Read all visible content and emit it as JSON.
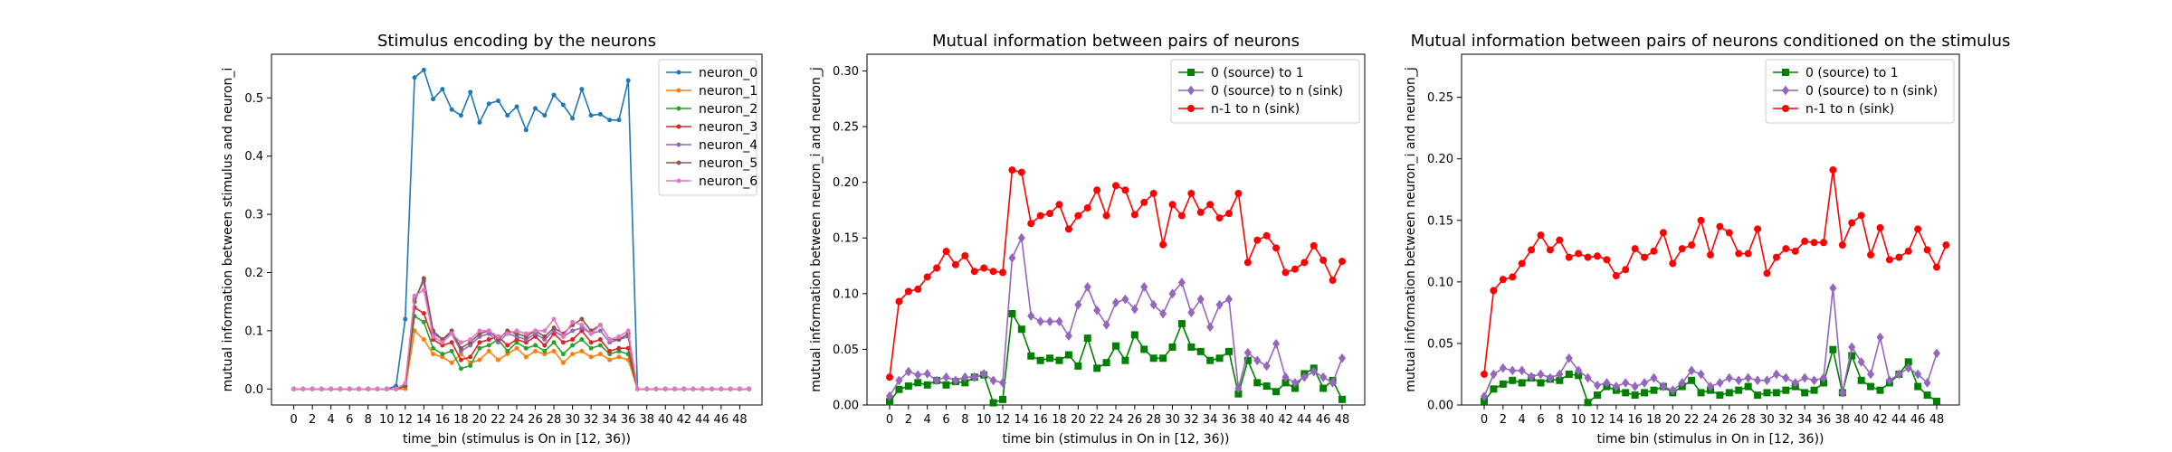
{
  "chart_data": [
    {
      "type": "line",
      "title": "Stimulus encoding by the neurons",
      "xlabel": "time_bin (stimulus is On in [12, 36))",
      "ylabel": "mutual information between stimulus and neuron_i",
      "xlim": [
        -2.4,
        50.4
      ],
      "ylim": [
        -0.0275,
        0.575
      ],
      "xticks": [
        0,
        2,
        4,
        6,
        8,
        10,
        12,
        14,
        16,
        18,
        20,
        22,
        24,
        26,
        28,
        30,
        32,
        34,
        36,
        38,
        40,
        42,
        44,
        46,
        48
      ],
      "yticks": [
        0.0,
        0.1,
        0.2,
        0.3,
        0.4,
        0.5
      ],
      "ytick_labels": [
        "0.0",
        "0.1",
        "0.2",
        "0.3",
        "0.4",
        "0.5"
      ],
      "legend_position": "top-right",
      "marker_size": 2.5,
      "series": [
        {
          "name": "neuron_0",
          "color": "#1f77b4",
          "marker": "circle",
          "values": [
            0,
            0,
            0,
            0,
            0,
            0,
            0,
            0,
            0,
            0,
            0,
            0.005,
            0.12,
            0.535,
            0.548,
            0.498,
            0.515,
            0.48,
            0.47,
            0.51,
            0.458,
            0.49,
            0.495,
            0.47,
            0.485,
            0.445,
            0.482,
            0.47,
            0.505,
            0.488,
            0.465,
            0.515,
            0.47,
            0.472,
            0.462,
            0.462,
            0.53,
            0,
            0,
            0,
            0,
            0,
            0,
            0,
            0,
            0,
            0,
            0,
            0,
            0
          ]
        },
        {
          "name": "neuron_1",
          "color": "#ff7f0e",
          "marker": "circle",
          "values": [
            0,
            0,
            0,
            0,
            0,
            0,
            0,
            0,
            0,
            0,
            0,
            0,
            0,
            0.1,
            0.085,
            0.06,
            0.055,
            0.045,
            0.06,
            0.045,
            0.05,
            0.065,
            0.05,
            0.06,
            0.07,
            0.055,
            0.065,
            0.06,
            0.065,
            0.045,
            0.06,
            0.065,
            0.055,
            0.06,
            0.05,
            0.055,
            0.05,
            0,
            0,
            0,
            0,
            0,
            0,
            0,
            0,
            0,
            0,
            0,
            0,
            0
          ]
        },
        {
          "name": "neuron_2",
          "color": "#2ca02c",
          "marker": "circle",
          "values": [
            0,
            0,
            0,
            0,
            0,
            0,
            0,
            0,
            0,
            0,
            0,
            0,
            0.005,
            0.125,
            0.115,
            0.07,
            0.06,
            0.065,
            0.035,
            0.04,
            0.07,
            0.075,
            0.085,
            0.065,
            0.08,
            0.07,
            0.075,
            0.065,
            0.08,
            0.06,
            0.075,
            0.085,
            0.07,
            0.075,
            0.06,
            0.065,
            0.06,
            0,
            0,
            0,
            0,
            0,
            0,
            0,
            0,
            0,
            0,
            0,
            0,
            0
          ]
        },
        {
          "name": "neuron_3",
          "color": "#d62728",
          "marker": "circle",
          "values": [
            0,
            0,
            0,
            0,
            0,
            0,
            0,
            0,
            0,
            0,
            0,
            0,
            0.005,
            0.14,
            0.13,
            0.085,
            0.075,
            0.08,
            0.05,
            0.055,
            0.08,
            0.085,
            0.09,
            0.075,
            0.085,
            0.08,
            0.09,
            0.075,
            0.095,
            0.08,
            0.085,
            0.1,
            0.08,
            0.085,
            0.065,
            0.07,
            0.07,
            0,
            0,
            0,
            0,
            0,
            0,
            0,
            0,
            0,
            0,
            0,
            0,
            0
          ]
        },
        {
          "name": "neuron_4",
          "color": "#9467bd",
          "marker": "circle",
          "values": [
            0,
            0,
            0,
            0,
            0,
            0,
            0,
            0,
            0,
            0,
            0,
            0,
            0.005,
            0.155,
            0.185,
            0.095,
            0.085,
            0.095,
            0.065,
            0.075,
            0.09,
            0.095,
            0.08,
            0.095,
            0.09,
            0.085,
            0.095,
            0.085,
            0.1,
            0.09,
            0.1,
            0.105,
            0.095,
            0.1,
            0.08,
            0.085,
            0.09,
            0,
            0,
            0,
            0,
            0,
            0,
            0,
            0,
            0,
            0,
            0,
            0,
            0
          ]
        },
        {
          "name": "neuron_5",
          "color": "#8c564b",
          "marker": "circle",
          "values": [
            0,
            0,
            0,
            0,
            0,
            0,
            0,
            0,
            0,
            0,
            0,
            0,
            0.005,
            0.15,
            0.19,
            0.1,
            0.085,
            0.1,
            0.07,
            0.08,
            0.095,
            0.1,
            0.085,
            0.1,
            0.095,
            0.09,
            0.1,
            0.09,
            0.105,
            0.095,
            0.11,
            0.12,
            0.1,
            0.11,
            0.085,
            0.085,
            0.095,
            0,
            0,
            0,
            0,
            0,
            0,
            0,
            0,
            0,
            0,
            0,
            0,
            0
          ]
        },
        {
          "name": "neuron_6",
          "color": "#e377c2",
          "marker": "circle",
          "values": [
            0,
            0,
            0,
            0,
            0,
            0,
            0,
            0,
            0,
            0,
            0,
            0,
            0.01,
            0.16,
            0.17,
            0.09,
            0.08,
            0.095,
            0.08,
            0.085,
            0.1,
            0.1,
            0.09,
            0.095,
            0.1,
            0.095,
            0.1,
            0.1,
            0.12,
            0.09,
            0.115,
            0.11,
            0.095,
            0.11,
            0.085,
            0.09,
            0.1,
            0,
            0,
            0,
            0,
            0,
            0,
            0,
            0,
            0,
            0,
            0,
            0,
            0
          ]
        }
      ]
    },
    {
      "type": "line",
      "title": "Mutual information between pairs of neurons",
      "xlabel": "time bin (stimulus in On in [12, 36))",
      "ylabel": "mutual information between neuron_i and neuron_j",
      "xlim": [
        -2.4,
        50.4
      ],
      "ylim": [
        0,
        0.315
      ],
      "xticks": [
        0,
        2,
        4,
        6,
        8,
        10,
        12,
        14,
        16,
        18,
        20,
        22,
        24,
        26,
        28,
        30,
        32,
        34,
        36,
        38,
        40,
        42,
        44,
        46,
        48
      ],
      "yticks": [
        0.0,
        0.05,
        0.1,
        0.15,
        0.2,
        0.25,
        0.3
      ],
      "ytick_labels": [
        "0.00",
        "0.05",
        "0.10",
        "0.15",
        "0.20",
        "0.25",
        "0.30"
      ],
      "legend_position": "top-right",
      "marker_size": 4,
      "series": [
        {
          "name": "0 (source) to 1",
          "color": "#008000",
          "marker": "square",
          "values": [
            0.003,
            0.014,
            0.017,
            0.02,
            0.018,
            0.022,
            0.018,
            0.021,
            0.02,
            0.025,
            0.027,
            0.002,
            0.005,
            0.082,
            0.068,
            0.044,
            0.04,
            0.042,
            0.04,
            0.045,
            0.035,
            0.06,
            0.033,
            0.038,
            0.053,
            0.04,
            0.063,
            0.05,
            0.042,
            0.042,
            0.052,
            0.073,
            0.052,
            0.048,
            0.04,
            0.042,
            0.048,
            0.01,
            0.04,
            0.02,
            0.017,
            0.012,
            0.02,
            0.015,
            0.028,
            0.033,
            0.015,
            0.022,
            0.005
          ]
        },
        {
          "name": "0 (source) to n (sink)",
          "color": "#9467bd",
          "marker": "diamond",
          "values": [
            0.008,
            0.022,
            0.03,
            0.027,
            0.028,
            0.022,
            0.025,
            0.022,
            0.025,
            0.025,
            0.028,
            0.022,
            0.02,
            0.132,
            0.15,
            0.08,
            0.075,
            0.075,
            0.075,
            0.062,
            0.09,
            0.106,
            0.085,
            0.072,
            0.092,
            0.095,
            0.086,
            0.106,
            0.09,
            0.082,
            0.1,
            0.11,
            0.083,
            0.095,
            0.07,
            0.09,
            0.095,
            0.015,
            0.047,
            0.04,
            0.035,
            0.055,
            0.025,
            0.02,
            0.025,
            0.03,
            0.025,
            0.02,
            0.042
          ]
        },
        {
          "name": "n-1 to n (sink)",
          "color": "#ff0000",
          "marker": "circle",
          "values": [
            0.025,
            0.093,
            0.102,
            0.104,
            0.115,
            0.123,
            0.138,
            0.126,
            0.134,
            0.12,
            0.123,
            0.12,
            0.119,
            0.211,
            0.209,
            0.163,
            0.17,
            0.172,
            0.18,
            0.158,
            0.17,
            0.177,
            0.193,
            0.17,
            0.197,
            0.193,
            0.171,
            0.182,
            0.19,
            0.144,
            0.18,
            0.17,
            0.19,
            0.173,
            0.18,
            0.168,
            0.172,
            0.19,
            0.128,
            0.148,
            0.152,
            0.141,
            0.119,
            0.122,
            0.128,
            0.143,
            0.13,
            0.112,
            0.129
          ]
        }
      ]
    },
    {
      "type": "line",
      "title": "Mutual information between pairs of neurons conditioned on the stimulus",
      "xlabel": "time bin (stimulus in On in [12, 36))",
      "ylabel": "mutual information between neuron_i and neuron_j",
      "xlim": [
        -2.4,
        50.4
      ],
      "ylim": [
        0,
        0.285
      ],
      "xticks": [
        0,
        2,
        4,
        6,
        8,
        10,
        12,
        14,
        16,
        18,
        20,
        22,
        24,
        26,
        28,
        30,
        32,
        34,
        36,
        38,
        40,
        42,
        44,
        46,
        48
      ],
      "yticks": [
        0.0,
        0.05,
        0.1,
        0.15,
        0.2,
        0.25
      ],
      "ytick_labels": [
        "0.00",
        "0.05",
        "0.10",
        "0.15",
        "0.20",
        "0.25"
      ],
      "legend_position": "top-right",
      "marker_size": 4,
      "series": [
        {
          "name": "0 (source) to 1",
          "color": "#008000",
          "marker": "square",
          "values": [
            0.003,
            0.013,
            0.017,
            0.02,
            0.018,
            0.022,
            0.018,
            0.021,
            0.02,
            0.025,
            0.024,
            0.002,
            0.008,
            0.015,
            0.012,
            0.01,
            0.008,
            0.01,
            0.012,
            0.015,
            0.01,
            0.015,
            0.02,
            0.01,
            0.012,
            0.008,
            0.01,
            0.012,
            0.015,
            0.008,
            0.01,
            0.01,
            0.012,
            0.015,
            0.01,
            0.012,
            0.018,
            0.045,
            0.01,
            0.04,
            0.02,
            0.015,
            0.012,
            0.018,
            0.025,
            0.035,
            0.015,
            0.008,
            0.003
          ]
        },
        {
          "name": "0 (source) to n (sink)",
          "color": "#9467bd",
          "marker": "diamond",
          "values": [
            0.007,
            0.025,
            0.03,
            0.028,
            0.028,
            0.023,
            0.025,
            0.022,
            0.025,
            0.038,
            0.028,
            0.022,
            0.016,
            0.018,
            0.015,
            0.018,
            0.015,
            0.018,
            0.022,
            0.015,
            0.012,
            0.018,
            0.028,
            0.025,
            0.015,
            0.018,
            0.022,
            0.02,
            0.022,
            0.02,
            0.02,
            0.025,
            0.022,
            0.018,
            0.022,
            0.02,
            0.022,
            0.095,
            0.01,
            0.047,
            0.035,
            0.025,
            0.055,
            0.02,
            0.025,
            0.03,
            0.025,
            0.018,
            0.042
          ]
        },
        {
          "name": "n-1 to n (sink)",
          "color": "#ff0000",
          "marker": "circle",
          "values": [
            0.025,
            0.093,
            0.102,
            0.104,
            0.115,
            0.126,
            0.138,
            0.126,
            0.134,
            0.12,
            0.123,
            0.12,
            0.121,
            0.118,
            0.105,
            0.11,
            0.127,
            0.12,
            0.125,
            0.14,
            0.115,
            0.127,
            0.13,
            0.15,
            0.122,
            0.145,
            0.14,
            0.123,
            0.123,
            0.143,
            0.107,
            0.12,
            0.127,
            0.125,
            0.133,
            0.132,
            0.132,
            0.191,
            0.13,
            0.148,
            0.154,
            0.122,
            0.144,
            0.118,
            0.12,
            0.125,
            0.143,
            0.126,
            0.112,
            0.13
          ]
        }
      ]
    }
  ]
}
